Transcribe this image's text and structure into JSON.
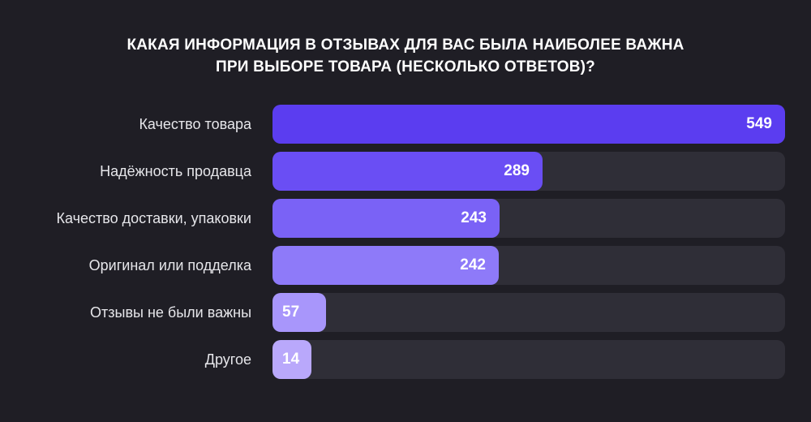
{
  "chart_data": {
    "type": "bar",
    "orientation": "horizontal",
    "title_lines": [
      "КАКАЯ ИНФОРМАЦИЯ В ОТЗЫВАХ ДЛЯ ВАС БЫЛА НАИБОЛЕЕ ВАЖНА",
      "ПРИ ВЫБОРЕ ТОВАРА (НЕСКОЛЬКО ОТВЕТОВ)?"
    ],
    "categories": [
      "Качество товара",
      "Надёжность продавца",
      "Качество доставки, упаковки",
      "Оригинал или подделка",
      "Отзывы не были важны",
      "Другое"
    ],
    "values": [
      549,
      289,
      243,
      242,
      57,
      14
    ],
    "xlim": [
      0,
      549
    ],
    "grid": false,
    "legend": "none",
    "colors": [
      "#5b3df0",
      "#6a4ef4",
      "#7a62f6",
      "#8e7af9",
      "#a896fb",
      "#b9a8fb"
    ],
    "track_color": "#2f2e37",
    "background": "#1f1e25"
  }
}
